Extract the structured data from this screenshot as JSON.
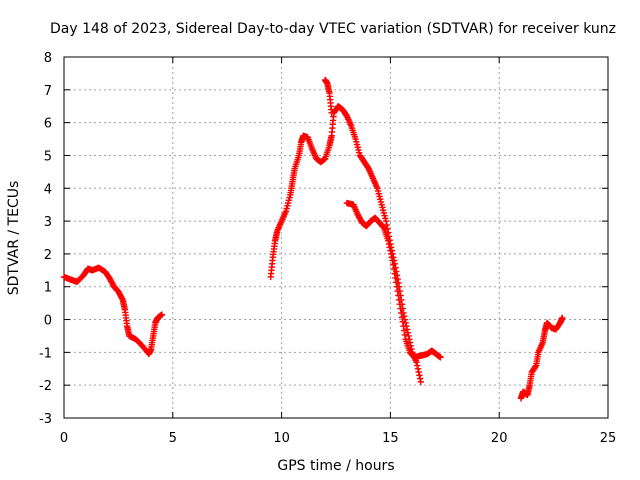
{
  "chart_data": {
    "type": "scatter",
    "title": "Day 148 of 2023, Sidereal Day-to-day VTEC variation (SDTVAR) for receiver kunz",
    "xlabel": "GPS time / hours",
    "ylabel": "SDTVAR / TECUs",
    "xlim": [
      0,
      25
    ],
    "ylim": [
      -3,
      8
    ],
    "x_ticks": [
      0,
      5,
      10,
      15,
      20,
      25
    ],
    "y_ticks": [
      -3,
      -2,
      -1,
      0,
      1,
      2,
      3,
      4,
      5,
      6,
      7,
      8
    ],
    "grid": true,
    "marker": "plus",
    "colors": {
      "series": "#ff0000",
      "grid": "#a0a0a0",
      "frame": "#000000"
    },
    "series": [
      {
        "points": [
          [
            0.0,
            1.3
          ],
          [
            0.3,
            1.22
          ],
          [
            0.6,
            1.15
          ],
          [
            0.9,
            1.35
          ],
          [
            1.1,
            1.55
          ],
          [
            1.3,
            1.5
          ],
          [
            1.6,
            1.58
          ],
          [
            1.9,
            1.45
          ],
          [
            2.1,
            1.25
          ],
          [
            2.3,
            1.0
          ],
          [
            2.5,
            0.85
          ],
          [
            2.7,
            0.6
          ],
          [
            2.8,
            0.3
          ],
          [
            2.9,
            -0.2
          ],
          [
            3.0,
            -0.5
          ],
          [
            3.3,
            -0.6
          ],
          [
            3.6,
            -0.8
          ],
          [
            3.9,
            -1.05
          ],
          [
            4.0,
            -0.9
          ],
          [
            4.1,
            -0.5
          ],
          [
            4.2,
            -0.1
          ],
          [
            4.3,
            0.05
          ],
          [
            4.5,
            0.15
          ]
        ]
      },
      {
        "points": [
          [
            9.5,
            1.3
          ],
          [
            9.6,
            1.9
          ],
          [
            9.7,
            2.4
          ],
          [
            9.8,
            2.7
          ],
          [
            10.0,
            3.0
          ],
          [
            10.2,
            3.3
          ],
          [
            10.4,
            3.8
          ],
          [
            10.5,
            4.2
          ],
          [
            10.6,
            4.6
          ],
          [
            10.8,
            5.0
          ],
          [
            10.9,
            5.4
          ],
          [
            11.0,
            5.6
          ],
          [
            11.2,
            5.55
          ],
          [
            11.4,
            5.2
          ],
          [
            11.6,
            4.9
          ],
          [
            11.8,
            4.8
          ],
          [
            12.0,
            4.9
          ],
          [
            12.2,
            5.3
          ],
          [
            12.3,
            5.6
          ],
          [
            12.4,
            6.3
          ],
          [
            12.6,
            6.5
          ],
          [
            12.8,
            6.4
          ],
          [
            13.0,
            6.2
          ],
          [
            13.2,
            5.9
          ],
          [
            13.4,
            5.5
          ],
          [
            13.6,
            5.0
          ],
          [
            13.8,
            4.8
          ],
          [
            14.0,
            4.6
          ],
          [
            14.2,
            4.3
          ],
          [
            14.4,
            4.0
          ],
          [
            14.6,
            3.5
          ],
          [
            14.8,
            3.0
          ],
          [
            15.0,
            2.3
          ],
          [
            15.2,
            1.7
          ],
          [
            15.4,
            1.0
          ],
          [
            15.6,
            0.2
          ],
          [
            15.8,
            -0.4
          ],
          [
            16.0,
            -1.0
          ],
          [
            16.2,
            -1.3
          ],
          [
            16.4,
            -1.9
          ]
        ]
      },
      {
        "points": [
          [
            12.0,
            7.3
          ],
          [
            12.1,
            7.2
          ],
          [
            12.2,
            6.9
          ],
          [
            12.3,
            6.3
          ]
        ]
      },
      {
        "points": [
          [
            13.0,
            3.55
          ],
          [
            13.3,
            3.5
          ],
          [
            13.5,
            3.2
          ],
          [
            13.7,
            2.95
          ],
          [
            13.9,
            2.85
          ],
          [
            14.1,
            3.0
          ],
          [
            14.3,
            3.1
          ],
          [
            14.5,
            2.95
          ],
          [
            14.7,
            2.8
          ],
          [
            14.9,
            2.4
          ],
          [
            15.1,
            1.8
          ],
          [
            15.3,
            1.0
          ],
          [
            15.5,
            0.2
          ],
          [
            15.7,
            -0.6
          ],
          [
            15.9,
            -1.0
          ],
          [
            16.1,
            -1.15
          ],
          [
            16.4,
            -1.1
          ],
          [
            16.7,
            -1.05
          ],
          [
            16.9,
            -0.95
          ],
          [
            17.1,
            -1.05
          ],
          [
            17.3,
            -1.15
          ]
        ]
      },
      {
        "points": [
          [
            21.0,
            -2.4
          ],
          [
            21.1,
            -2.2
          ],
          [
            21.3,
            -2.3
          ],
          [
            21.4,
            -2.0
          ],
          [
            21.5,
            -1.6
          ],
          [
            21.7,
            -1.4
          ],
          [
            21.8,
            -1.0
          ],
          [
            22.0,
            -0.7
          ],
          [
            22.1,
            -0.35
          ],
          [
            22.2,
            -0.1
          ],
          [
            22.4,
            -0.25
          ],
          [
            22.6,
            -0.3
          ],
          [
            22.8,
            -0.1
          ],
          [
            22.9,
            0.05
          ]
        ]
      }
    ]
  }
}
